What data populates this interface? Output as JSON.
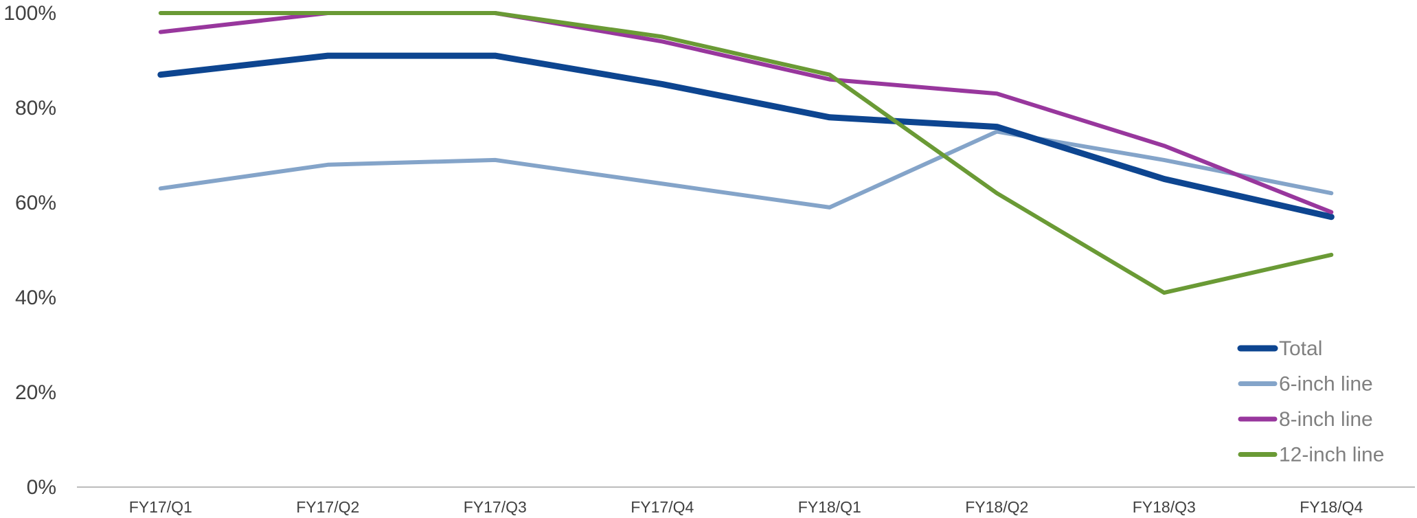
{
  "chart_data": {
    "type": "line",
    "title": "",
    "xlabel": "",
    "ylabel": "",
    "categories": [
      "FY17/Q1",
      "FY17/Q2",
      "FY17/Q3",
      "FY17/Q4",
      "FY18/Q1",
      "FY18/Q2",
      "FY18/Q3",
      "FY18/Q4"
    ],
    "yticks": [
      "0%",
      "20%",
      "40%",
      "60%",
      "80%",
      "100%"
    ],
    "ylim": [
      0,
      100
    ],
    "grid": false,
    "legend_position": "bottom-right",
    "series": [
      {
        "name": "Total",
        "color": "#0d4590",
        "values": [
          87,
          91,
          91,
          85,
          78,
          76,
          65,
          57
        ]
      },
      {
        "name": "6-inch line",
        "color": "#84a4c9",
        "values": [
          63,
          68,
          69,
          64,
          59,
          75,
          69,
          62
        ]
      },
      {
        "name": "8-inch line",
        "color": "#98379d",
        "values": [
          96,
          100,
          100,
          94,
          86,
          83,
          72,
          58
        ]
      },
      {
        "name": "12-inch line",
        "color": "#6a9a35",
        "values": [
          100,
          100,
          100,
          95,
          87,
          62,
          41,
          49
        ]
      }
    ]
  }
}
